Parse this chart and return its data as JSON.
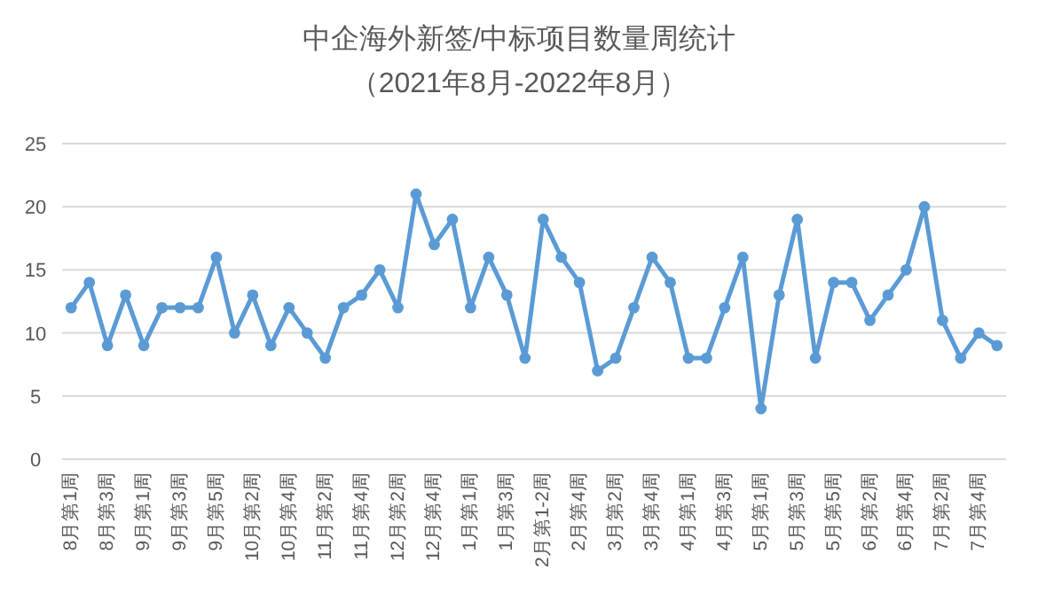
{
  "chart_data": {
    "type": "line",
    "title": "中企海外新签/中标项目数量周统计",
    "subtitle": "（2021年8月-2022年8月）",
    "categories": [
      "8月第1周",
      null,
      "8月第3周",
      null,
      "9月第1周",
      null,
      "9月第3周",
      null,
      "9月第5周",
      null,
      "10月第2周",
      null,
      "10月第4周",
      null,
      "11月第2周",
      null,
      "11月第4周",
      null,
      "12月第2周",
      null,
      "12月第4周",
      null,
      "1月第1周",
      null,
      "1月第3周",
      null,
      "2月第1-2周",
      null,
      "2月第4周",
      null,
      "3月第2周",
      null,
      "3月第4周",
      null,
      "4月第1周",
      null,
      "4月第3周",
      null,
      "5月第1周",
      null,
      "5月第3周",
      null,
      "5月第5周",
      null,
      "6月第2周",
      null,
      "6月第4周",
      null,
      "7月第2周",
      null,
      "7月第4周",
      null
    ],
    "series": [
      {
        "color": "#5b9bd5",
        "values": [
          12,
          14,
          9,
          13,
          9,
          12,
          12,
          12,
          16,
          10,
          13,
          9,
          12,
          10,
          8,
          12,
          13,
          15,
          12,
          21,
          17,
          19,
          12,
          16,
          13,
          8,
          19,
          16,
          14,
          7,
          8,
          12,
          16,
          14,
          8,
          8,
          12,
          16,
          4,
          13,
          19,
          8,
          14,
          14,
          11,
          13,
          15,
          20,
          11,
          8,
          10,
          9
        ]
      }
    ],
    "ylim": [
      0,
      25
    ],
    "yticks": [
      0,
      5,
      10,
      15,
      20,
      25
    ],
    "grid": "y",
    "marker": "circle",
    "line_style": "solid"
  }
}
